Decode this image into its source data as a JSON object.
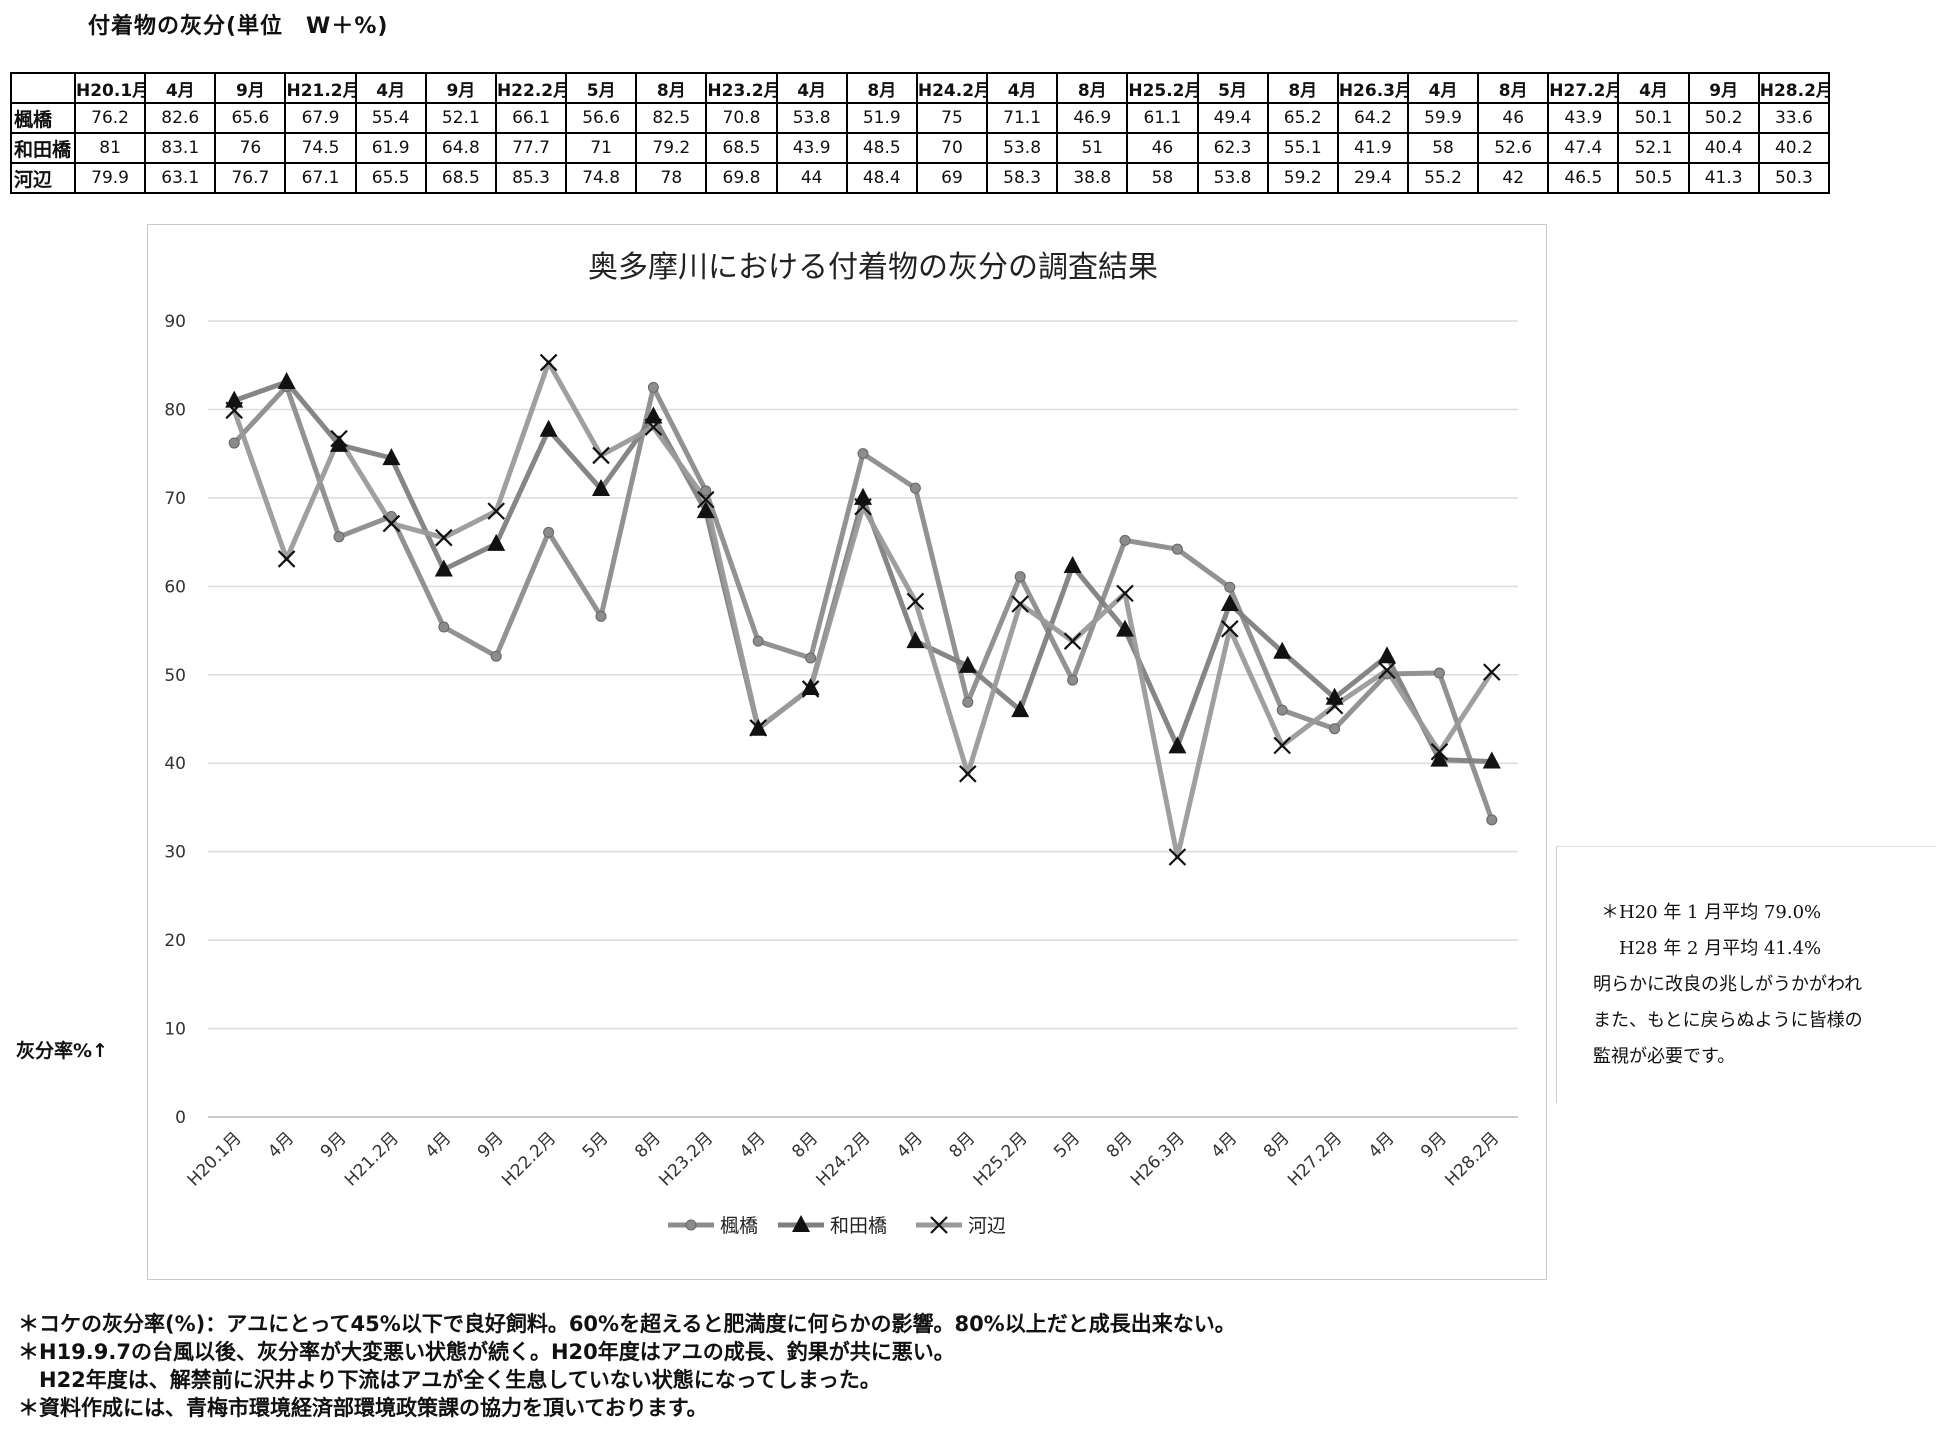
{
  "page_title": "付着物の灰分(単位　W＋%)",
  "table": {
    "columns": [
      "H20.1月",
      "4月",
      "9月",
      "H21.2月",
      "4月",
      "9月",
      "H22.2月",
      "5月",
      "8月",
      "H23.2月",
      "4月",
      "8月",
      "H24.2月",
      "4月",
      "8月",
      "H25.2月",
      "5月",
      "8月",
      "H26.3月",
      "4月",
      "8月",
      "H27.2月",
      "4月",
      "9月",
      "H28.2月"
    ],
    "rows": [
      {
        "label": "楓橋",
        "values": [
          "76.2",
          "82.6",
          "65.6",
          "67.9",
          "55.4",
          "52.1",
          "66.1",
          "56.6",
          "82.5",
          "70.8",
          "53.8",
          "51.9",
          "75",
          "71.1",
          "46.9",
          "61.1",
          "49.4",
          "65.2",
          "64.2",
          "59.9",
          "46",
          "43.9",
          "50.1",
          "50.2",
          "33.6"
        ]
      },
      {
        "label": "和田橋",
        "values": [
          "81",
          "83.1",
          "76",
          "74.5",
          "61.9",
          "64.8",
          "77.7",
          "71",
          "79.2",
          "68.5",
          "43.9",
          "48.5",
          "70",
          "53.8",
          "51",
          "46",
          "62.3",
          "55.1",
          "41.9",
          "58",
          "52.6",
          "47.4",
          "52.1",
          "40.4",
          "40.2"
        ]
      },
      {
        "label": "河辺",
        "values": [
          "79.9",
          "63.1",
          "76.7",
          "67.1",
          "65.5",
          "68.5",
          "85.3",
          "74.8",
          "78",
          "69.8",
          "44",
          "48.4",
          "69",
          "58.3",
          "38.8",
          "58",
          "53.8",
          "59.2",
          "29.4",
          "55.2",
          "42",
          "46.5",
          "50.5",
          "41.3",
          "50.3"
        ]
      }
    ]
  },
  "chart_data": {
    "type": "line",
    "title": "奥多摩川における付着物の灰分の調査結果",
    "ylabel": "灰分率%↑",
    "xlabel": "",
    "ylim": [
      0,
      90
    ],
    "yticks": [
      0,
      10,
      20,
      30,
      40,
      50,
      60,
      70,
      80,
      90
    ],
    "grid": true,
    "legend_position": "bottom",
    "categories": [
      "H20.1月",
      "4月",
      "9月",
      "H21.2月",
      "4月",
      "9月",
      "H22.2月",
      "5月",
      "8月",
      "H23.2月",
      "4月",
      "8月",
      "H24.2月",
      "4月",
      "8月",
      "H25.2月",
      "5月",
      "8月",
      "H26.3月",
      "4月",
      "8月",
      "H27.2月",
      "4月",
      "9月",
      "H28.2月"
    ],
    "series": [
      {
        "name": "楓橋",
        "marker": "circle",
        "color": "#8c8c8c",
        "values": [
          76.2,
          82.6,
          65.6,
          67.9,
          55.4,
          52.1,
          66.1,
          56.6,
          82.5,
          70.8,
          53.8,
          51.9,
          75,
          71.1,
          46.9,
          61.1,
          49.4,
          65.2,
          64.2,
          59.9,
          46,
          43.9,
          50.1,
          50.2,
          33.6
        ]
      },
      {
        "name": "和田橋",
        "marker": "triangle",
        "color": "#7f7f7f",
        "values": [
          81,
          83.1,
          76,
          74.5,
          61.9,
          64.8,
          77.7,
          71,
          79.2,
          68.5,
          43.9,
          48.5,
          70,
          53.8,
          51,
          46,
          62.3,
          55.1,
          41.9,
          58,
          52.6,
          47.4,
          52.1,
          40.4,
          40.2
        ]
      },
      {
        "name": "河辺",
        "marker": "x",
        "color": "#9a9a9a",
        "values": [
          79.9,
          63.1,
          76.7,
          67.1,
          65.5,
          68.5,
          85.3,
          74.8,
          78,
          69.8,
          44,
          48.4,
          69,
          58.3,
          38.8,
          58,
          53.8,
          59.2,
          29.4,
          55.2,
          42,
          46.5,
          50.5,
          41.3,
          50.3
        ]
      }
    ]
  },
  "note": {
    "lines": [
      "＊H20 年 1 月平均 79.0%",
      "　H28 年 2 月平均 41.4%",
      "明らかに改良の兆しがうかがわれ",
      "また、もとに戻らぬように皆様の",
      "監視が必要です。"
    ]
  },
  "footnotes": [
    "＊コケの灰分率(%)：アユにとって45%以下で良好飼料。60%を超えると肥満度に何らかの影響。80%以上だと成長出来ない。",
    "＊H19.9.7の台風以後、灰分率が大変悪い状態が続く。H20年度はアユの成長、釣果が共に悪い。",
    "　H22年度は、解禁前に沢井より下流はアユが全く生息していない状態になってしまった。",
    "＊資料作成には、青梅市環境経済部環境政策課の協力を頂いております。"
  ]
}
